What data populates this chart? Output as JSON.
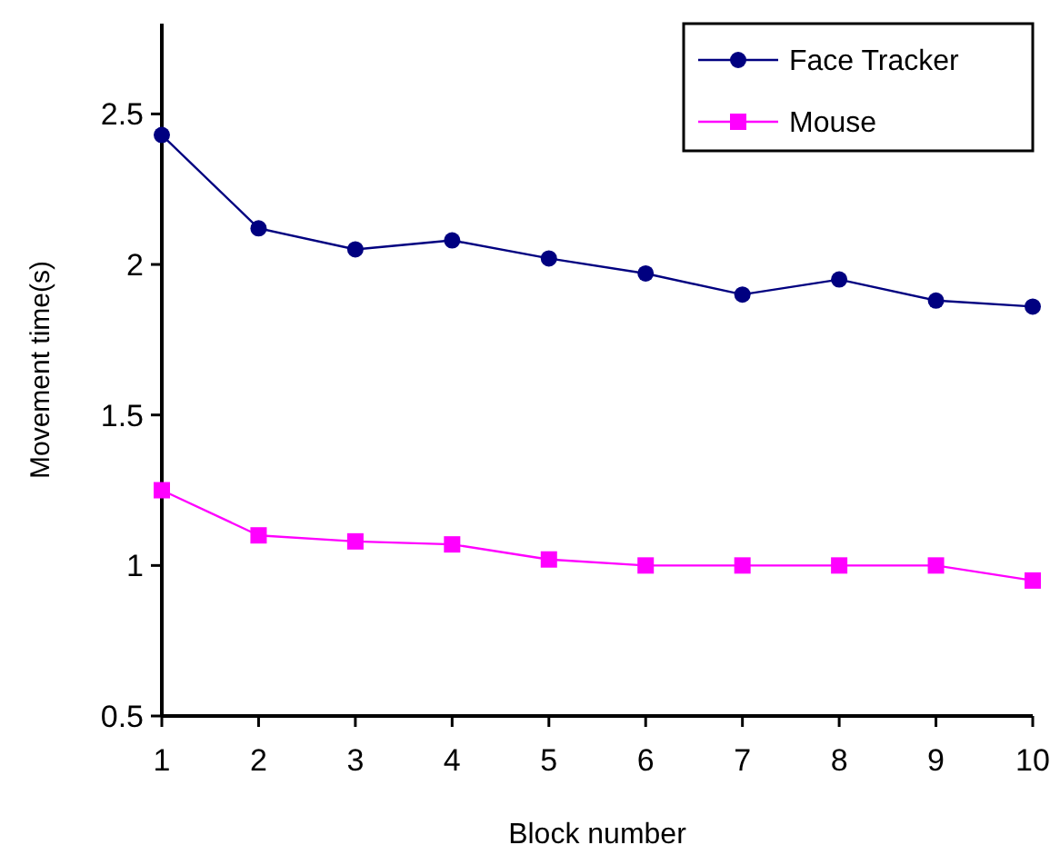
{
  "chart_data": {
    "type": "line",
    "xlabel": "Block number",
    "ylabel": "Movement time(s)",
    "x": [
      1,
      2,
      3,
      4,
      5,
      6,
      7,
      8,
      9,
      10
    ],
    "series": [
      {
        "name": "Face Tracker",
        "color": "#000080",
        "marker": "circle",
        "values": [
          2.43,
          2.12,
          2.05,
          2.08,
          2.02,
          1.97,
          1.9,
          1.95,
          1.88,
          1.86
        ]
      },
      {
        "name": "Mouse",
        "color": "#ff00ff",
        "marker": "square",
        "values": [
          1.25,
          1.1,
          1.08,
          1.07,
          1.02,
          1.0,
          1.0,
          1.0,
          1.0,
          0.95
        ]
      }
    ],
    "xlim": [
      1,
      10
    ],
    "xticks": [
      1,
      2,
      3,
      4,
      5,
      6,
      7,
      8,
      9,
      10
    ],
    "ylim": [
      0.5,
      2.8
    ],
    "yticks": [
      {
        "value": 0.5,
        "label": "0.5"
      },
      {
        "value": 1,
        "label": "1"
      },
      {
        "value": 1.5,
        "label": "1.5"
      },
      {
        "value": 2,
        "label": "2"
      },
      {
        "value": 2.5,
        "label": "2.5"
      }
    ],
    "grid": false,
    "legend": "top right",
    "line_style": "solid"
  }
}
